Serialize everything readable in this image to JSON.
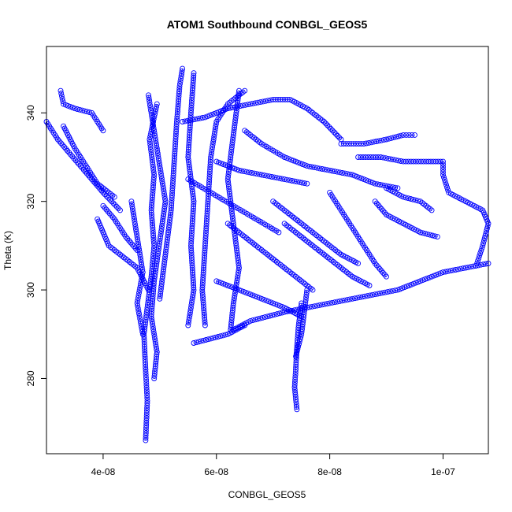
{
  "chart_data": {
    "type": "scatter",
    "title": "ATOM1 Southbound CONBGL_GEOS5",
    "xlabel": "CONBGL_GEOS5",
    "ylabel": "Theta (K)",
    "xlim": [
      3e-08,
      1.08e-07
    ],
    "ylim": [
      263,
      355
    ],
    "x_ticks": [
      {
        "value": 4e-08,
        "label": "4e-08"
      },
      {
        "value": 6e-08,
        "label": "6e-08"
      },
      {
        "value": 8e-08,
        "label": "8e-08"
      },
      {
        "value": 1e-07,
        "label": "1e-07"
      }
    ],
    "y_ticks": [
      {
        "value": 280,
        "label": "280"
      },
      {
        "value": 300,
        "label": "300"
      },
      {
        "value": 320,
        "label": "320"
      },
      {
        "value": 340,
        "label": "340"
      }
    ],
    "marker": "open-circle",
    "series": [
      {
        "color": "#0000ff",
        "paths": [
          [
            [
              4.75e-08,
              266
            ],
            [
              4.78e-08,
              275
            ],
            [
              4.75e-08,
              282
            ],
            [
              4.72e-08,
              290
            ],
            [
              4.78e-08,
              296
            ],
            [
              4.85e-08,
              303
            ],
            [
              4.9e-08,
              310
            ],
            [
              4.85e-08,
              318
            ],
            [
              4.9e-08,
              326
            ],
            [
              4.82e-08,
              334
            ],
            [
              4.95e-08,
              342
            ]
          ],
          [
            [
              4.8e-08,
              344
            ],
            [
              4.9e-08,
              336
            ],
            [
              5e-08,
              328
            ],
            [
              5.1e-08,
              320
            ],
            [
              5e-08,
              311
            ],
            [
              4.9e-08,
              302
            ],
            [
              4.85e-08,
              294
            ],
            [
              4.95e-08,
              286
            ],
            [
              4.9e-08,
              280
            ]
          ],
          [
            [
              5e-08,
              298
            ],
            [
              5.1e-08,
              308
            ],
            [
              5.2e-08,
              318
            ],
            [
              5.25e-08,
              328
            ],
            [
              5.3e-08,
              338
            ],
            [
              5.35e-08,
              346
            ],
            [
              5.4e-08,
              350
            ]
          ],
          [
            [
              5.6e-08,
              349
            ],
            [
              5.55e-08,
              340
            ],
            [
              5.5e-08,
              330
            ],
            [
              5.6e-08,
              320
            ],
            [
              5.55e-08,
              310
            ],
            [
              5.6e-08,
              300
            ],
            [
              5.5e-08,
              292
            ]
          ],
          [
            [
              5.8e-08,
              292
            ],
            [
              5.75e-08,
              300
            ],
            [
              5.8e-08,
              310
            ],
            [
              5.85e-08,
              320
            ],
            [
              5.9e-08,
              330
            ],
            [
              6e-08,
              338
            ],
            [
              6.2e-08,
              342
            ],
            [
              6.5e-08,
              345
            ]
          ],
          [
            [
              6.4e-08,
              345
            ],
            [
              6.3e-08,
              335
            ],
            [
              6.2e-08,
              325
            ],
            [
              6.3e-08,
              315
            ],
            [
              6.4e-08,
              305
            ],
            [
              6.3e-08,
              297
            ],
            [
              6.25e-08,
              291
            ]
          ],
          [
            [
              3.25e-08,
              345
            ],
            [
              3.3e-08,
              342
            ],
            [
              3.5e-08,
              341
            ],
            [
              3.8e-08,
              340
            ],
            [
              4e-08,
              336
            ]
          ],
          [
            [
              3e-08,
              338
            ],
            [
              3.2e-08,
              334
            ],
            [
              3.4e-08,
              331
            ],
            [
              3.6e-08,
              328
            ],
            [
              3.8e-08,
              325
            ],
            [
              4e-08,
              322
            ],
            [
              4.3e-08,
              318
            ]
          ],
          [
            [
              3.3e-08,
              337
            ],
            [
              3.5e-08,
              332
            ],
            [
              3.7e-08,
              328
            ],
            [
              3.9e-08,
              324
            ],
            [
              4.2e-08,
              321
            ]
          ],
          [
            [
              3.9e-08,
              316
            ],
            [
              4e-08,
              313
            ],
            [
              4.1e-08,
              310
            ],
            [
              4.3e-08,
              308
            ],
            [
              4.6e-08,
              305
            ],
            [
              4.8e-08,
              300
            ]
          ],
          [
            [
              4e-08,
              319
            ],
            [
              4.2e-08,
              316
            ],
            [
              4.4e-08,
              312
            ],
            [
              4.6e-08,
              309
            ]
          ],
          [
            [
              5.4e-08,
              338
            ],
            [
              5.8e-08,
              339
            ],
            [
              6.2e-08,
              341
            ],
            [
              6.6e-08,
              342
            ],
            [
              7e-08,
              343
            ],
            [
              7.3e-08,
              343
            ],
            [
              7.6e-08,
              341
            ],
            [
              7.9e-08,
              338
            ],
            [
              8.2e-08,
              334
            ]
          ],
          [
            [
              6.5e-08,
              336
            ],
            [
              6.8e-08,
              333
            ],
            [
              7.2e-08,
              330
            ],
            [
              7.6e-08,
              328
            ],
            [
              8e-08,
              327
            ],
            [
              8.4e-08,
              326
            ],
            [
              8.8e-08,
              324
            ],
            [
              9.2e-08,
              323
            ]
          ],
          [
            [
              6e-08,
              329
            ],
            [
              6.4e-08,
              327
            ],
            [
              6.8e-08,
              326
            ],
            [
              7.2e-08,
              325
            ],
            [
              7.6e-08,
              324
            ]
          ],
          [
            [
              8.2e-08,
              333
            ],
            [
              8.6e-08,
              333
            ],
            [
              9e-08,
              334
            ],
            [
              9.3e-08,
              335
            ],
            [
              9.5e-08,
              335
            ]
          ],
          [
            [
              8.5e-08,
              330
            ],
            [
              8.9e-08,
              330
            ],
            [
              9.3e-08,
              329
            ],
            [
              9.7e-08,
              329
            ],
            [
              1e-07,
              329
            ],
            [
              1e-07,
              326
            ],
            [
              1.01e-07,
              322
            ],
            [
              1.04e-07,
              320
            ],
            [
              1.07e-07,
              318
            ],
            [
              1.08e-07,
              315
            ],
            [
              1.07e-07,
              310
            ],
            [
              1.06e-07,
              306
            ]
          ],
          [
            [
              1.08e-07,
              306
            ],
            [
              1.04e-07,
              305
            ],
            [
              1e-07,
              304
            ],
            [
              9.6e-08,
              302
            ],
            [
              9.2e-08,
              300
            ],
            [
              8.8e-08,
              299
            ],
            [
              8.4e-08,
              298
            ],
            [
              8e-08,
              297
            ],
            [
              7.6e-08,
              296
            ],
            [
              7.2e-08,
              295
            ],
            [
              6.9e-08,
              294
            ],
            [
              6.6e-08,
              293
            ],
            [
              6.3e-08,
              291
            ]
          ],
          [
            [
              9e-08,
              323
            ],
            [
              9.3e-08,
              321
            ],
            [
              9.6e-08,
              320
            ],
            [
              9.8e-08,
              318
            ]
          ],
          [
            [
              8.8e-08,
              320
            ],
            [
              9e-08,
              317
            ],
            [
              9.3e-08,
              315
            ],
            [
              9.6e-08,
              313
            ],
            [
              9.9e-08,
              312
            ]
          ],
          [
            [
              7.5e-08,
              297
            ],
            [
              7.45e-08,
              292
            ],
            [
              7.42e-08,
              287
            ],
            [
              7.4e-08,
              282
            ],
            [
              7.38e-08,
              278
            ],
            [
              7.42e-08,
              273
            ]
          ],
          [
            [
              7.6e-08,
              300
            ],
            [
              7.55e-08,
              295
            ],
            [
              7.5e-08,
              290
            ],
            [
              7.4e-08,
              285
            ]
          ],
          [
            [
              7.2e-08,
              315
            ],
            [
              7.5e-08,
              312
            ],
            [
              7.8e-08,
              309
            ],
            [
              8.1e-08,
              306
            ],
            [
              8.4e-08,
              303
            ],
            [
              8.7e-08,
              301
            ]
          ],
          [
            [
              7e-08,
              320
            ],
            [
              7.3e-08,
              317
            ],
            [
              7.6e-08,
              314
            ],
            [
              7.9e-08,
              311
            ],
            [
              8.2e-08,
              308
            ],
            [
              8.5e-08,
              306
            ]
          ],
          [
            [
              8e-08,
              322
            ],
            [
              8.2e-08,
              318
            ],
            [
              8.4e-08,
              314
            ],
            [
              8.6e-08,
              310
            ],
            [
              8.8e-08,
              306
            ],
            [
              9e-08,
              303
            ]
          ],
          [
            [
              6.2e-08,
              315
            ],
            [
              6.5e-08,
              312
            ],
            [
              6.8e-08,
              309
            ],
            [
              7.1e-08,
              306
            ],
            [
              7.4e-08,
              303
            ],
            [
              7.7e-08,
              300
            ]
          ],
          [
            [
              5.5e-08,
              325
            ],
            [
              5.9e-08,
              322
            ],
            [
              6.3e-08,
              319
            ],
            [
              6.7e-08,
              316
            ],
            [
              7.1e-08,
              313
            ]
          ],
          [
            [
              4.5e-08,
              320
            ],
            [
              4.6e-08,
              312
            ],
            [
              4.7e-08,
              304
            ],
            [
              4.6e-08,
              297
            ],
            [
              4.7e-08,
              290
            ]
          ],
          [
            [
              6e-08,
              302
            ],
            [
              6.4e-08,
              300
            ],
            [
              6.8e-08,
              298
            ],
            [
              7.2e-08,
              296
            ],
            [
              7.5e-08,
              294
            ]
          ],
          [
            [
              5.6e-08,
              288
            ],
            [
              5.9e-08,
              289
            ],
            [
              6.2e-08,
              290
            ],
            [
              6.5e-08,
              292
            ]
          ]
        ]
      }
    ]
  }
}
